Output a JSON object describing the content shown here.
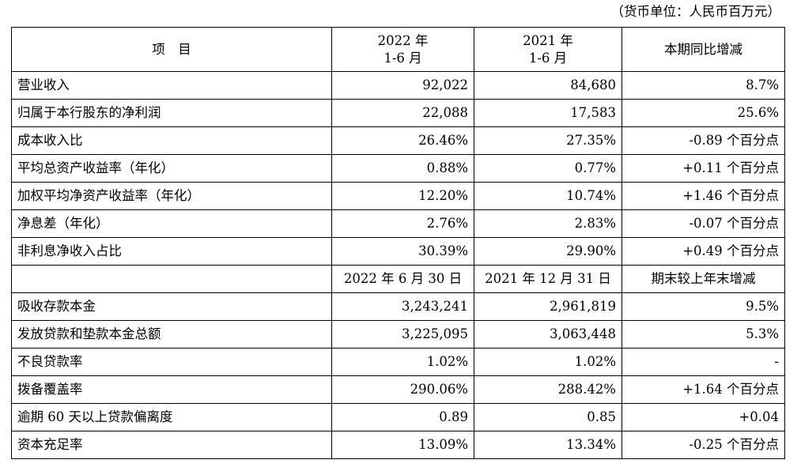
{
  "unit_note": "（货币单位：人民币百万元）",
  "header": {
    "item": "项　目",
    "col_a_line1": "2022 年",
    "col_a_line2": "1-6 月",
    "col_b_line1": "2021 年",
    "col_b_line2": "1-6 月",
    "col_c": "本期同比增减"
  },
  "section1_rows": [
    {
      "label": "营业收入",
      "a": "92,022",
      "b": "84,680",
      "c": "8.7%"
    },
    {
      "label": "归属于本行股东的净利润",
      "a": "22,088",
      "b": "17,583",
      "c": "25.6%"
    },
    {
      "label": "成本收入比",
      "a": "26.46%",
      "b": "27.35%",
      "c": "-0.89 个百分点"
    },
    {
      "label": "平均总资产收益率（年化）",
      "a": "0.88%",
      "b": "0.77%",
      "c": "+0.11 个百分点"
    },
    {
      "label": "加权平均净资产收益率（年化）",
      "a": "12.20%",
      "b": "10.74%",
      "c": "+1.46 个百分点"
    },
    {
      "label": "净息差（年化）",
      "a": "2.76%",
      "b": "2.83%",
      "c": "-0.07 个百分点"
    },
    {
      "label": "非利息净收入占比",
      "a": "30.39%",
      "b": "29.90%",
      "c": "+0.49 个百分点"
    }
  ],
  "subheader": {
    "item": "",
    "col_a": "2022 年 6 月 30 日",
    "col_b": "2021 年 12 月 31 日",
    "col_c": "期末较上年末增减"
  },
  "section2_rows": [
    {
      "label": "吸收存款本金",
      "a": "3,243,241",
      "b": "2,961,819",
      "c": "9.5%"
    },
    {
      "label": "发放贷款和垫款本金总额",
      "a": "3,225,095",
      "b": "3,063,448",
      "c": "5.3%"
    },
    {
      "label": "不良贷款率",
      "a": "1.02%",
      "b": "1.02%",
      "c": "-"
    },
    {
      "label": "拨备覆盖率",
      "a": "290.06%",
      "b": "288.42%",
      "c": "+1.64 个百分点"
    },
    {
      "label": "逾期 60 天以上贷款偏离度",
      "a": "0.89",
      "b": "0.85",
      "c": "+0.04"
    },
    {
      "label": "资本充足率",
      "a": "13.09%",
      "b": "13.34%",
      "c": "-0.25 个百分点"
    }
  ]
}
